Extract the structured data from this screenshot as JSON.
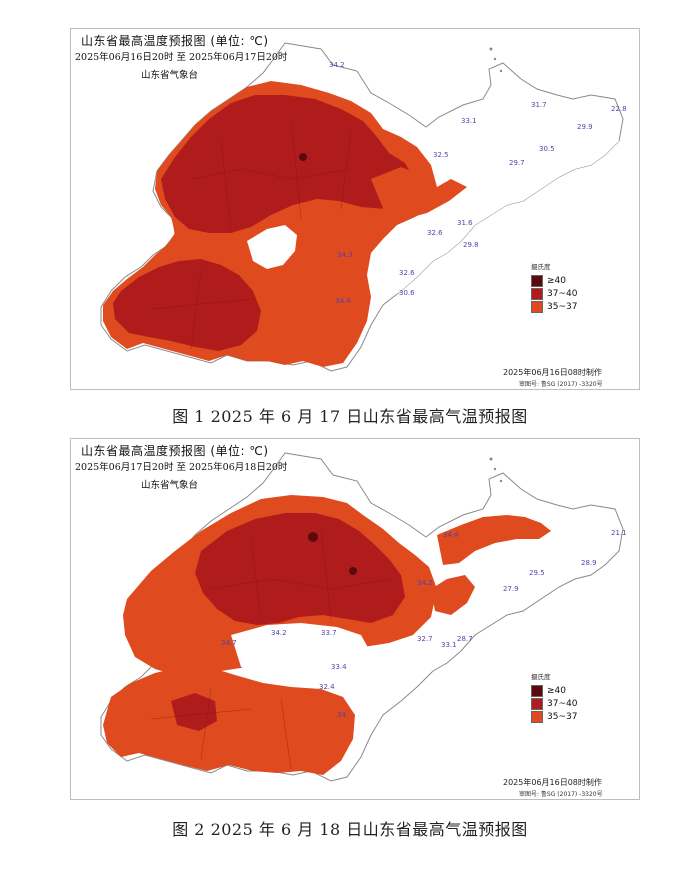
{
  "figures": [
    {
      "title": "山东省最高温度预报图 (单位: ℃)",
      "time_range": "2025年06月16日20时  至  2025年06月17日20时",
      "agency": "山东省气象台",
      "legend": {
        "title": "摄氏度",
        "items": [
          {
            "label": "≥40",
            "color": "#5a0a0d"
          },
          {
            "label": "37~40",
            "color": "#b01c1c"
          },
          {
            "label": "35~37",
            "color": "#e04a1f"
          }
        ]
      },
      "made": "2025年06月16日08时制作",
      "review_no": "审图号: 鲁SG (2017) -3320号",
      "caption": "图 1   2025 年 6 月 17 日山东省最高气温预报图",
      "station_values": [
        "34.2",
        "29.7",
        "33.1",
        "31.7",
        "32.5",
        "30.5",
        "29.9",
        "22.8",
        "32.6",
        "31.6",
        "34.3",
        "32.6",
        "30.6",
        "34.4",
        "29.8"
      ]
    },
    {
      "title": "山东省最高温度预报图 (单位: ℃)",
      "time_range": "2025年06月17日20时  至  2025年06月18日20时",
      "agency": "山东省气象台",
      "legend": {
        "title": "摄氏度",
        "items": [
          {
            "label": "≥40",
            "color": "#5a0a0d"
          },
          {
            "label": "37~40",
            "color": "#b01c1c"
          },
          {
            "label": "35~37",
            "color": "#e04a1f"
          }
        ]
      },
      "made": "2025年06月16日08时制作",
      "review_no": "审图号: 鲁SG (2017) -3320号",
      "caption": "图 2   2025 年 6 月 18 日山东省最高气温预报图",
      "station_values": [
        "34.4",
        "34.2",
        "32.7",
        "33.1",
        "28.7",
        "27.9",
        "29.5",
        "28.9",
        "21.1",
        "34.7",
        "34.2",
        "33.7",
        "33.4",
        "32.4",
        "34"
      ]
    }
  ]
}
